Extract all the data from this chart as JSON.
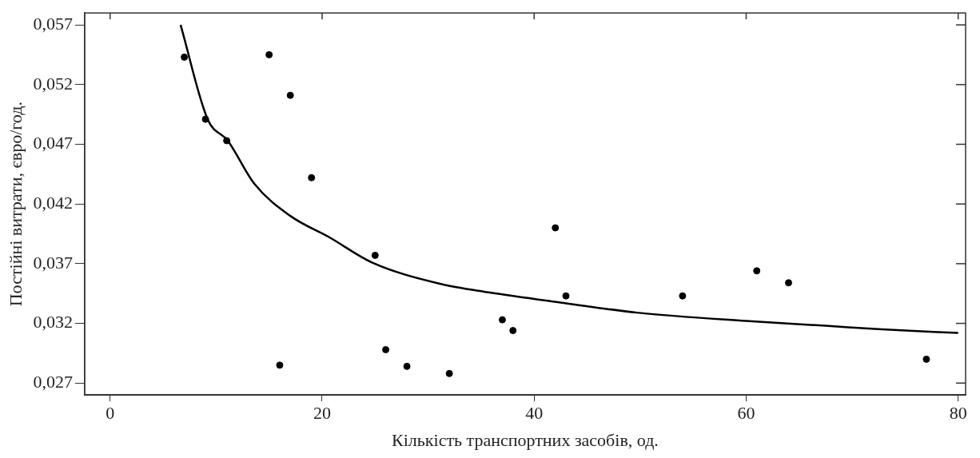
{
  "chart_data": {
    "type": "scatter",
    "xlabel": "Кількість транспортних засобів, од.",
    "ylabel": "Постійні витрати, євро/год.",
    "xlim": [
      -2.4,
      80.7
    ],
    "xticks": [
      0,
      20,
      40,
      60,
      80
    ],
    "ylim": [
      0.026,
      0.058
    ],
    "yticks": [
      {
        "value": 0.027,
        "label": "0,027"
      },
      {
        "value": 0.032,
        "label": "0,032"
      },
      {
        "value": 0.037,
        "label": "0,037"
      },
      {
        "value": 0.042,
        "label": "0,042"
      },
      {
        "value": 0.047,
        "label": "0,047"
      },
      {
        "value": 0.052,
        "label": "0,052"
      },
      {
        "value": 0.057,
        "label": "0,057"
      }
    ],
    "grid": false,
    "legend": false,
    "marker": "circle",
    "series": [
      {
        "type": "scatter",
        "color": "#000000",
        "x": [
          7,
          9,
          11,
          15,
          16,
          17,
          19,
          25,
          26,
          28,
          32,
          37,
          38,
          42,
          43,
          54,
          61,
          64,
          77
        ],
        "values": [
          0.0543,
          0.0491,
          0.0473,
          0.0545,
          0.0285,
          0.0511,
          0.0442,
          0.0377,
          0.0298,
          0.0284,
          0.0278,
          0.0323,
          0.0314,
          0.04,
          0.0343,
          0.0343,
          0.0364,
          0.0354,
          0.029
        ]
      },
      {
        "type": "line",
        "color": "#000000",
        "marker": "none",
        "line_style": "solid",
        "x": [
          6.65,
          9.2,
          11.1,
          13.6,
          17,
          20.7,
          24.7,
          31.2,
          35.7,
          42.9,
          49.7,
          60,
          67.5,
          72.8,
          80
        ],
        "values": [
          0.057,
          0.0491,
          0.0473,
          0.0437,
          0.041,
          0.0392,
          0.0371,
          0.0353,
          0.0346,
          0.0337,
          0.0329,
          0.0322,
          0.0318,
          0.0315,
          0.0312
        ]
      }
    ]
  }
}
